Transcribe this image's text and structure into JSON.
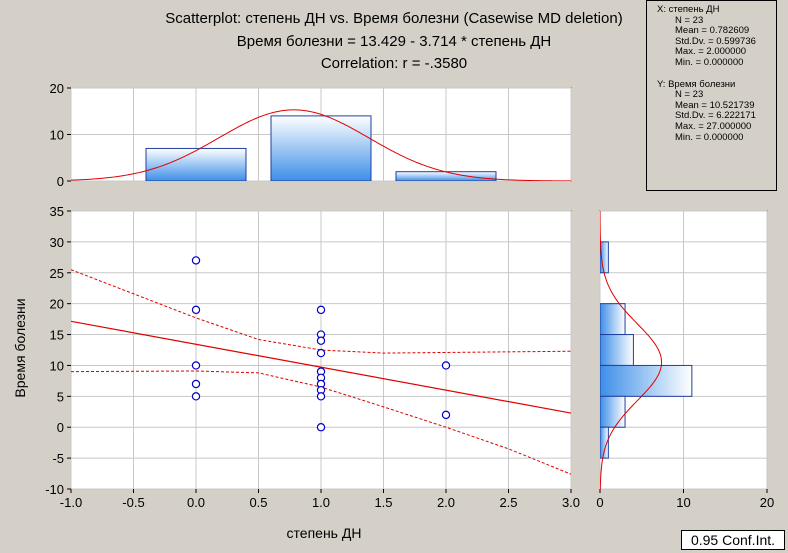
{
  "chart_data": {
    "type": "scatter",
    "title_lines": [
      "Scatterplot: степень ДН vs. Время болезни (Casewise MD deletion)",
      "Время болезни = 13.429 - 3.714  * степень ДН",
      "Correlation: r = -.3580"
    ],
    "xlabel": "степень ДН",
    "ylabel": "Время болезни",
    "xlim": [
      -1.0,
      3.0
    ],
    "ylim": [
      -10,
      35
    ],
    "x_ticks": [
      "-1.0",
      "-0.5",
      "0.0",
      "0.5",
      "1.0",
      "1.5",
      "2.0",
      "2.5",
      "3.0"
    ],
    "x_tick_values": [
      -1.0,
      -0.5,
      0.0,
      0.5,
      1.0,
      1.5,
      2.0,
      2.5,
      3.0
    ],
    "y_ticks": [
      "-10",
      "-5",
      "0",
      "5",
      "10",
      "15",
      "20",
      "25",
      "30",
      "35"
    ],
    "y_tick_values": [
      -10,
      -5,
      0,
      5,
      10,
      15,
      20,
      25,
      30,
      35
    ],
    "points": [
      {
        "x": 0,
        "y": 27
      },
      {
        "x": 0,
        "y": 19
      },
      {
        "x": 0,
        "y": 10
      },
      {
        "x": 0,
        "y": 7
      },
      {
        "x": 0,
        "y": 5
      },
      {
        "x": 1,
        "y": 19
      },
      {
        "x": 1,
        "y": 15
      },
      {
        "x": 1,
        "y": 14
      },
      {
        "x": 1,
        "y": 12
      },
      {
        "x": 1,
        "y": 9
      },
      {
        "x": 1,
        "y": 8
      },
      {
        "x": 1,
        "y": 7
      },
      {
        "x": 1,
        "y": 6
      },
      {
        "x": 1,
        "y": 5
      },
      {
        "x": 1,
        "y": 0
      },
      {
        "x": 2,
        "y": 10
      },
      {
        "x": 2,
        "y": 2
      }
    ],
    "regression": {
      "intercept": 13.429,
      "slope": -3.714
    },
    "conf_upper": [
      {
        "x": -1.0,
        "y": 25.5
      },
      {
        "x": 0.0,
        "y": 17.7
      },
      {
        "x": 0.5,
        "y": 14.2
      },
      {
        "x": 1.0,
        "y": 12.5
      },
      {
        "x": 1.5,
        "y": 12.0
      },
      {
        "x": 2.0,
        "y": 12.1
      },
      {
        "x": 2.5,
        "y": 12.2
      },
      {
        "x": 3.0,
        "y": 12.3
      }
    ],
    "conf_lower": [
      {
        "x": -1.0,
        "y": 9.0
      },
      {
        "x": 0.0,
        "y": 9.1
      },
      {
        "x": 0.5,
        "y": 8.8
      },
      {
        "x": 1.0,
        "y": 6.5
      },
      {
        "x": 1.5,
        "y": 3.3
      },
      {
        "x": 2.0,
        "y": 0.0
      },
      {
        "x": 2.5,
        "y": -3.5
      },
      {
        "x": 3.0,
        "y": -7.6
      }
    ],
    "top_histogram": {
      "ylim": [
        0,
        20
      ],
      "y_ticks": [
        "0",
        "10",
        "20"
      ],
      "y_tick_values": [
        0,
        10,
        20
      ],
      "bins": [
        {
          "x0": -0.4,
          "x1": 0.4,
          "count": 7
        },
        {
          "x0": 0.6,
          "x1": 1.4,
          "count": 14
        },
        {
          "x0": 1.6,
          "x1": 2.4,
          "count": 2
        }
      ],
      "normal_curve": {
        "mean": 0.782609,
        "sd": 0.599736,
        "n": 23,
        "binwidth": 1
      }
    },
    "right_histogram": {
      "xlim": [
        0,
        20
      ],
      "x_ticks": [
        "0",
        "10",
        "20"
      ],
      "x_tick_values": [
        0,
        10,
        20
      ],
      "bins": [
        {
          "y0": 25,
          "y1": 30,
          "count": 1
        },
        {
          "y0": 15,
          "y1": 20,
          "count": 3
        },
        {
          "y0": 10,
          "y1": 15,
          "count": 4
        },
        {
          "y0": 5,
          "y1": 10,
          "count": 11
        },
        {
          "y0": 0,
          "y1": 5,
          "count": 3
        },
        {
          "y0": -5,
          "y1": 0,
          "count": 1
        }
      ],
      "normal_curve": {
        "mean": 10.521739,
        "sd": 6.222171,
        "n": 23,
        "binwidth": 5
      }
    },
    "colors": {
      "bar_fill_top": "#ffffff",
      "bar_fill_bottom": "#3d8ee8",
      "bar_stroke": "#1f3fa0",
      "curve": "#e00000",
      "point": "#0000c8",
      "grid": "#c8c8c8",
      "plot_bg": "#ffffff",
      "window_bg": "#d4d0c8"
    }
  },
  "stats_box": {
    "x_label": "X:  степень ДН",
    "x_n": "N = 23",
    "x_mean": "Mean = 0.782609",
    "x_std": "Std.Dv. = 0.599736",
    "x_max": "Max. = 2.000000",
    "x_min": "Min. = 0.000000",
    "y_label": "Y:  Время болезни",
    "y_n": "N = 23",
    "y_mean": "Mean = 10.521739",
    "y_std": "Std.Dv. = 6.222171",
    "y_max": "Max. = 27.000000",
    "y_min": "Min. = 0.000000"
  },
  "conf_label": "0.95 Conf.Int."
}
